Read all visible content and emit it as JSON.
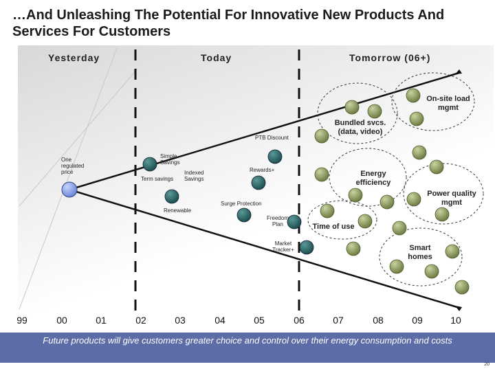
{
  "title": "…And Unleashing The Potential For Innovative New Products And Services For Customers",
  "eras": {
    "yesterday": "Yesterday",
    "today": "Today",
    "tomorrow": "Tomorrow (06+)"
  },
  "years": [
    "99",
    "00",
    "01",
    "02",
    "03",
    "04",
    "05",
    "06",
    "07",
    "08",
    "09",
    "10"
  ],
  "labels": {
    "one_regulated_price": "One regulated price",
    "simple_savings": "Simple Savings",
    "term_savings": "Term savings",
    "indexed_savings": "Indexed Savings",
    "ptb_discount": "PTB Discount",
    "rewards": "Rewards+",
    "surge_protection": "Surge Protection",
    "renewable": "Renewable",
    "freedom_plan": "Freedom Plan",
    "market_tracker": "Market Tracker+",
    "bundled_svcs": "Bundled svcs. (data, video)",
    "onsite_load": "On-site load mgmt",
    "energy_efficiency": "Energy efficiency",
    "power_quality": "Power quality mgmt",
    "time_of_use": "Time of use",
    "smart_homes": "Smart homes"
  },
  "footer": "Future products will give customers greater choice and control over their energy consumption and costs",
  "page_number": "20",
  "colors": {
    "footer_bg": "#5b6ca6",
    "today_node": "#2f6b6b",
    "future_node": "#9aa86a",
    "origin_node": "#8fa6e8"
  }
}
